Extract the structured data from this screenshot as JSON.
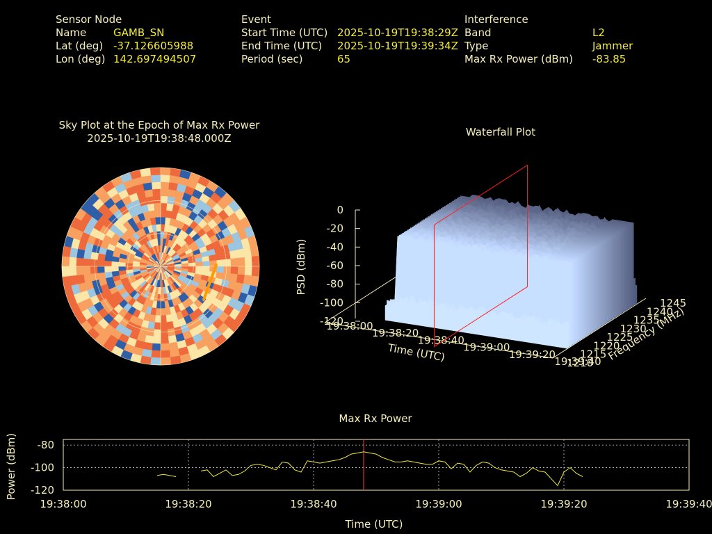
{
  "header": {
    "sensor": {
      "heading": "Sensor Node",
      "name_label": "Name",
      "name_value": "GAMB_SN",
      "lat_label": "Lat (deg)",
      "lat_value": "-37.126605988",
      "lon_label": "Lon (deg)",
      "lon_value": "142.697494507"
    },
    "event": {
      "heading": "Event",
      "start_label": "Start Time (UTC)",
      "start_value": "2025-10-19T19:38:29Z",
      "end_label": "End Time (UTC)",
      "end_value": "2025-10-19T19:39:34Z",
      "period_label": "Period (sec)",
      "period_value": "65"
    },
    "interference": {
      "heading": "Interference",
      "band_label": "Band",
      "band_value": "L2",
      "type_label": "Type",
      "type_value": "Jammer",
      "power_label": "Max Rx Power (dBm)",
      "power_value": "-83.85"
    }
  },
  "colors": {
    "background": "#000000",
    "label_text": "#f5eeb8",
    "value_text": "#f0e83c",
    "trace": "#f0e83c",
    "marker": "#ff2020",
    "sky_track": "#ff9a00"
  },
  "chart_data": [
    {
      "type": "heatmap",
      "kind": "polar-sky-plot",
      "title": "Sky Plot at the Epoch of Max Rx Power",
      "subtitle": "2025-10-19T19:38:48.000Z",
      "rings_elevation_deg": [
        0,
        30,
        60
      ],
      "spokes_azimuth_deg": [
        0,
        90,
        180,
        270
      ],
      "colormap": [
        "#2f5fa8",
        "#9cc6df",
        "#fbe6a8",
        "#f8a060",
        "#ee6a3c"
      ]
    },
    {
      "type": "area",
      "kind": "3d-waterfall",
      "title": "Waterfall Plot",
      "xlabel": "Time (UTC)",
      "ylabel": "Frequency (MHz)",
      "zlabel": "PSD (dBm)",
      "x_ticks": [
        "19:38:00",
        "19:38:20",
        "19:38:40",
        "19:39:00",
        "19:39:20",
        "19:39:40"
      ],
      "y_ticks": [
        "1210",
        "1215",
        "1220",
        "1225",
        "1230",
        "1235",
        "1240",
        "1245"
      ],
      "z_ticks": [
        "0",
        "-20",
        "-40",
        "-60",
        "-80",
        "-100",
        "-120"
      ],
      "zlim": [
        -120,
        0
      ],
      "ylim": [
        1210,
        1245
      ],
      "plateau_psd_dbm": -30,
      "floor_psd_dbm": -95,
      "marker_time": "19:38:48"
    },
    {
      "type": "line",
      "title": "Max Rx Power",
      "xlabel": "Time (UTC)",
      "ylabel": "Power (dBm)",
      "x_ticks": [
        "19:38:00",
        "19:38:20",
        "19:38:40",
        "19:39:00",
        "19:39:20",
        "19:39:40"
      ],
      "y_ticks": [
        "-80",
        "-100",
        "-120"
      ],
      "xlim_sec": [
        0,
        100
      ],
      "ylim": [
        -120,
        -75
      ],
      "marker_sec": 48,
      "series": [
        {
          "segments": [
            {
              "x": [
                15,
                16,
                17,
                18
              ],
              "y": [
                -107,
                -106,
                -107,
                -108
              ]
            },
            {
              "x": [
                22,
                23,
                24,
                25,
                26,
                27,
                28,
                29,
                30,
                31,
                32,
                33,
                34,
                35,
                36,
                37,
                38,
                39,
                40,
                41,
                42,
                43,
                44,
                45,
                46,
                47,
                48,
                49,
                50,
                51,
                52,
                53,
                54,
                55,
                56,
                57,
                58,
                59,
                60,
                61,
                62,
                63,
                64,
                65,
                66,
                67,
                68,
                69,
                70,
                71,
                72,
                73,
                74,
                75,
                76,
                77,
                78,
                79,
                80,
                81,
                82,
                83
              ],
              "y": [
                -103,
                -102,
                -108,
                -105,
                -102,
                -107,
                -106,
                -103,
                -98,
                -97,
                -98,
                -100,
                -102,
                -95,
                -96,
                -102,
                -104,
                -94,
                -95,
                -96,
                -95,
                -94,
                -93,
                -91,
                -88,
                -87,
                -86,
                -87,
                -88,
                -91,
                -93,
                -95,
                -95,
                -94,
                -95,
                -96,
                -97,
                -97,
                -94,
                -95,
                -101,
                -96,
                -97,
                -104,
                -98,
                -95,
                -96,
                -100,
                -102,
                -103,
                -104,
                -108,
                -105,
                -100,
                -103,
                -104,
                -110,
                -116,
                -104,
                -100,
                -105,
                -108
              ]
            }
          ]
        }
      ]
    }
  ]
}
